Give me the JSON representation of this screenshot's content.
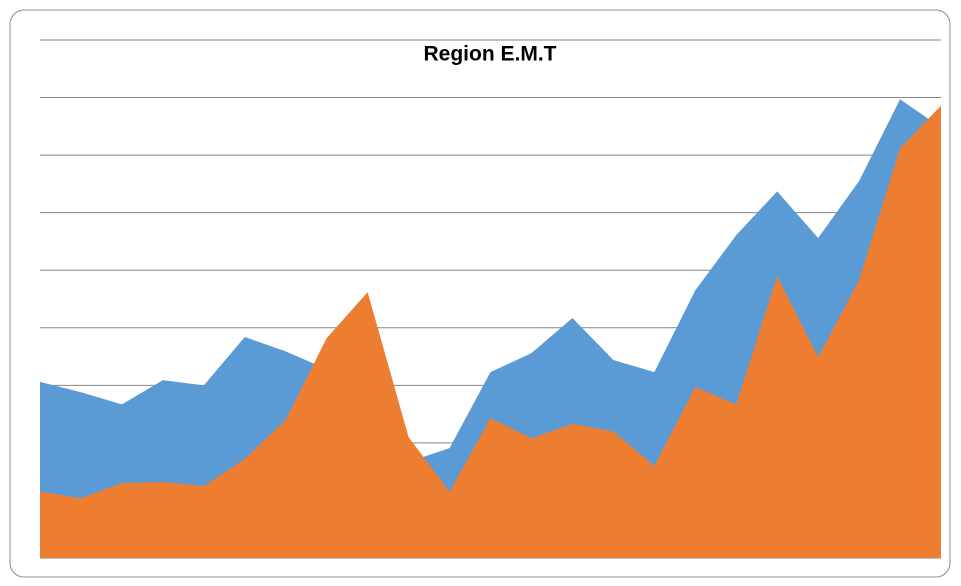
{
  "chart_data": {
    "type": "area",
    "title": "Region E.M.T",
    "series": [
      {
        "color": "#5b9bd5",
        "values": [
          3.06,
          2.88,
          2.67,
          3.09,
          3.0,
          3.84,
          3.59,
          3.28,
          3.0,
          1.67,
          1.91,
          3.23,
          3.56,
          4.17,
          3.44,
          3.23,
          4.65,
          5.61,
          6.37,
          5.56,
          6.55,
          7.97,
          7.48
        ]
      },
      {
        "color": "#ed7d31",
        "values": [
          1.15,
          1.04,
          1.3,
          1.32,
          1.25,
          1.72,
          2.4,
          3.82,
          4.62,
          2.1,
          1.15,
          2.43,
          2.08,
          2.33,
          2.2,
          1.6,
          2.97,
          2.67,
          4.9,
          3.49,
          4.83,
          7.12,
          7.86
        ]
      }
    ],
    "ylim": [
      0,
      9
    ],
    "yticks": [
      0,
      1,
      2,
      3,
      4,
      5,
      6,
      7,
      8,
      9
    ],
    "grid": true
  }
}
